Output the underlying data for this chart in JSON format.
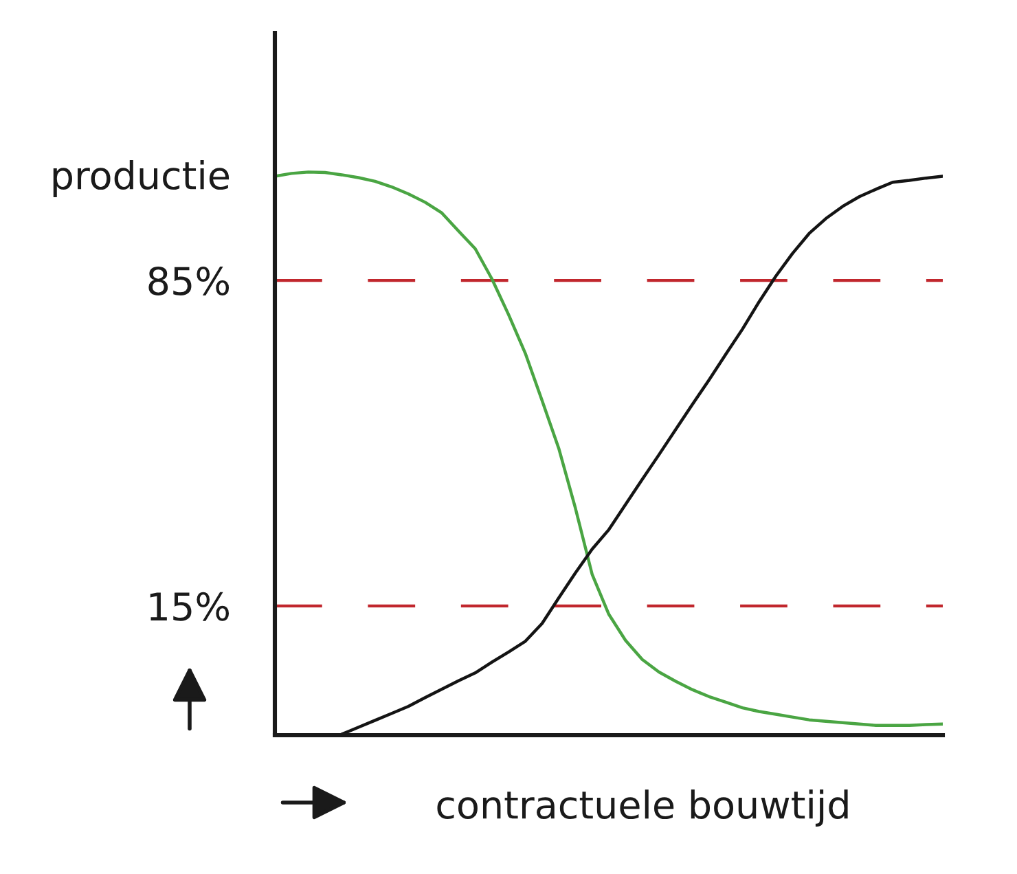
{
  "chart_data": {
    "type": "line",
    "ylabel": "productie",
    "xlabel": "contractuele bouwtijd",
    "categories": [
      null,
      null,
      null,
      null,
      null,
      null,
      null,
      null,
      null,
      null,
      null,
      null,
      null,
      null,
      null,
      null,
      null,
      null,
      null,
      null,
      null,
      null,
      null,
      null,
      null,
      null,
      null,
      null,
      null,
      null,
      null,
      null,
      null,
      null,
      null,
      null,
      null,
      null,
      null,
      null,
      null
    ],
    "series": [
      {
        "color": "#4aa543",
        "values": [
          107.4,
          108.0,
          108.3,
          108.2,
          107.7,
          107.1,
          106.3,
          105.1,
          103.6,
          101.8,
          99.5,
          95.6,
          91.8,
          85.3,
          77.6,
          69.3,
          59.2,
          48.9,
          36.0,
          21.8,
          13.2,
          7.6,
          3.5,
          0.8,
          -1.2,
          -3.0,
          -4.5,
          -5.7,
          -6.9,
          -7.7,
          -8.3,
          -8.9,
          -9.5,
          -9.8,
          -10.1,
          -10.4,
          -10.7,
          -10.7,
          -10.7,
          -10.5,
          -10.4
        ]
      },
      {
        "color": "#141414",
        "values": [
          null,
          null,
          null,
          null,
          -12.6,
          -11.1,
          -9.6,
          -8.1,
          -6.6,
          -4.7,
          -2.9,
          -1.1,
          0.6,
          2.9,
          5.1,
          7.4,
          11.2,
          16.7,
          22.1,
          27.2,
          31.4,
          36.8,
          42.2,
          47.5,
          52.9,
          58.3,
          63.6,
          69.1,
          74.5,
          80.4,
          85.9,
          90.8,
          95.1,
          98.3,
          100.9,
          103.0,
          104.6,
          106.1,
          106.5,
          107.0,
          107.4
        ]
      }
    ],
    "ylim": [
      -12.8,
      138.2
    ],
    "yticks": [
      {
        "value": 85,
        "label": "85%"
      },
      {
        "value": 15,
        "label": "15%"
      }
    ],
    "ref_lines": [
      {
        "axis": "y",
        "value": 85,
        "color": "#c1272d",
        "line_style": "dashed"
      },
      {
        "axis": "y",
        "value": 15,
        "color": "#c1272d",
        "line_style": "dashed"
      }
    ],
    "tick_labels": "y"
  }
}
